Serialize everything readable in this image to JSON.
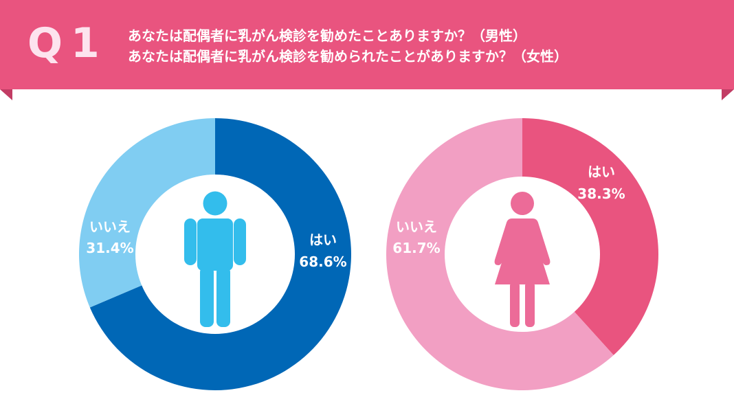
{
  "header": {
    "q_label": "Q1",
    "line1": "あなたは配偶者に乳がん検診を勧めたことありますか？（男性）",
    "line2": "あなたは配偶者に乳がん検診を勧められたことがありますか？（女性）"
  },
  "chart_data": [
    {
      "type": "pie",
      "donut": true,
      "title": "",
      "icon": "male-figure-icon",
      "categories": [
        "はい",
        "いいえ"
      ],
      "values": [
        68.6,
        31.4
      ],
      "value_labels": [
        "68.6%",
        "31.4%"
      ],
      "colors": [
        "#0067b6",
        "#80cdf2"
      ],
      "icon_color": "#33bdec"
    },
    {
      "type": "pie",
      "donut": true,
      "title": "",
      "icon": "female-figure-icon",
      "categories": [
        "はい",
        "いいえ"
      ],
      "values": [
        38.3,
        61.7
      ],
      "value_labels": [
        "38.3%",
        "61.7%"
      ],
      "colors": [
        "#e9547f",
        "#f29fc3"
      ],
      "icon_color": "#ec6b98"
    }
  ]
}
